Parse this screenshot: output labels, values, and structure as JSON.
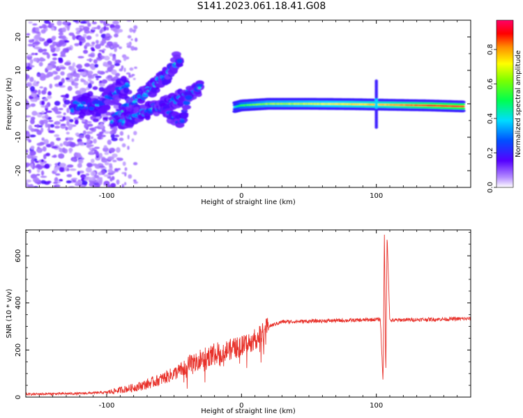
{
  "title": "S141.2023.061.18.41.G08",
  "colors": {
    "snr_line": "#e8312a",
    "background": "#ffffff",
    "axis": "#000000"
  },
  "chart_data": [
    {
      "type": "heatmap",
      "title": "S141.2023.061.18.41.G08",
      "xlabel": "Height of straight line (km)",
      "ylabel": "Frequency (Hz)",
      "xlim": [
        -160,
        170
      ],
      "ylim": [
        -25,
        25
      ],
      "x_ticks": [
        -100,
        0,
        100
      ],
      "y_ticks": [
        -20,
        -10,
        0,
        10,
        20
      ],
      "colorbar": {
        "label": "Normalized spectral amplitude",
        "range": [
          0,
          0.97
        ],
        "ticks": [
          0.0,
          0.2,
          0.4,
          0.6,
          0.8
        ],
        "colormap": "rainbow-white-purple-blue-cyan-green-yellow-red-magenta"
      },
      "features": {
        "main_trace": {
          "x": [
            -5,
            0,
            20,
            50,
            80,
            110,
            140,
            165
          ],
          "y": [
            -1,
            -0.5,
            0,
            0,
            -0.1,
            -0.3,
            -0.5,
            -0.8
          ],
          "amplitude": [
            0.4,
            0.55,
            0.65,
            0.7,
            0.75,
            0.8,
            0.9,
            0.95
          ]
        },
        "upper_branch": {
          "x": [
            -95,
            -85,
            -75,
            -65,
            -55,
            -45
          ],
          "y": [
            -5,
            -1,
            2,
            5,
            9,
            14
          ]
        },
        "lower_branch": {
          "x": [
            -90,
            -80,
            -70,
            -55,
            -40,
            -30
          ],
          "y": [
            -6,
            -4,
            -2,
            0,
            3,
            5
          ]
        },
        "left_branch": {
          "x": [
            -125,
            -115,
            -105,
            -95,
            -85
          ],
          "y": [
            -1,
            0,
            -0.5,
            3,
            6
          ]
        },
        "sideband_branch": {
          "x": [
            -60,
            -50,
            -45,
            -38
          ],
          "y": [
            -1,
            -4,
            -6,
            4
          ]
        },
        "spike_x": 100
      }
    },
    {
      "type": "line",
      "xlabel": "Height of straight line (km)",
      "ylabel": "SNR (10 * v/v)",
      "xlim": [
        -160,
        170
      ],
      "ylim": [
        0,
        710
      ],
      "x_ticks": [
        -100,
        0,
        100
      ],
      "y_ticks": [
        0,
        200,
        400,
        600
      ],
      "series": [
        {
          "x": [
            -160,
            -140,
            -120,
            -100,
            -90,
            -80,
            -70,
            -60,
            -50,
            -40,
            -30,
            -20,
            -10,
            0,
            10,
            15,
            20,
            30,
            50,
            70,
            90,
            100,
            103,
            105,
            106,
            107,
            108,
            110,
            120,
            140,
            160,
            170
          ],
          "y": [
            12,
            14,
            15,
            20,
            30,
            40,
            55,
            75,
            100,
            130,
            160,
            185,
            200,
            215,
            245,
            270,
            300,
            320,
            322,
            325,
            327,
            330,
            330,
            60,
            700,
            80,
            690,
            325,
            328,
            330,
            332,
            333
          ]
        }
      ]
    }
  ]
}
